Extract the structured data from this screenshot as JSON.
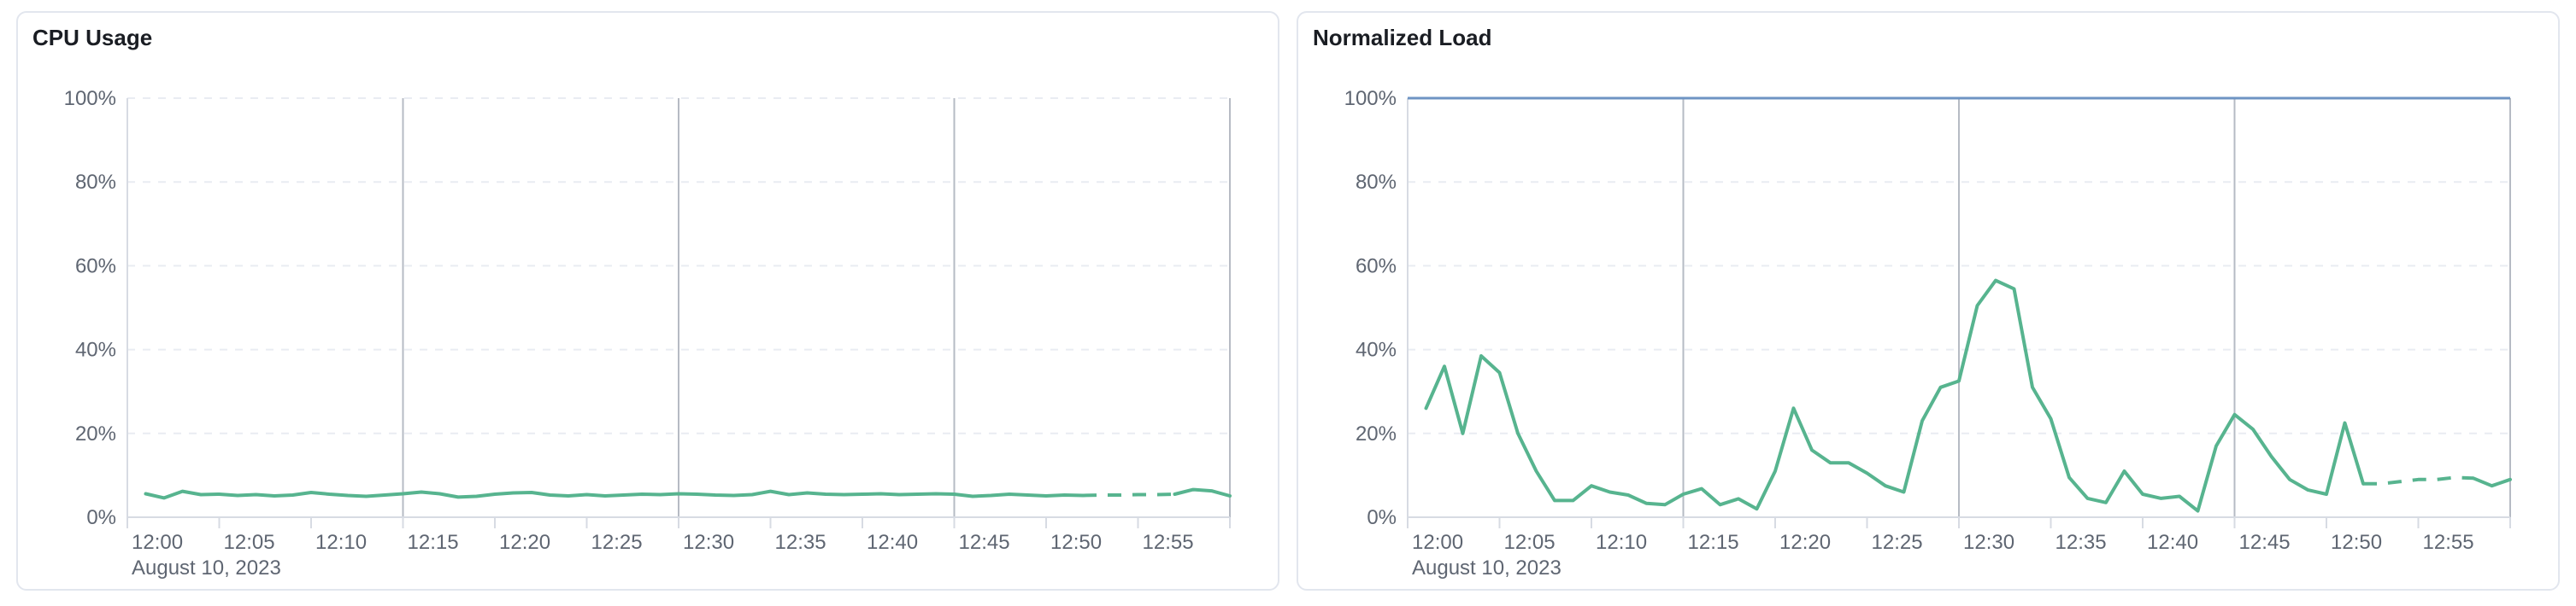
{
  "colors": {
    "series_green": "#57b48f",
    "limit_blue": "#6e94c3",
    "grid_dashed": "#e9ecf2",
    "grid_vertical": "#b6bbc4",
    "axis_line": "#d7dbe3",
    "axis_text": "#5f6672",
    "title_text": "#1a1d23",
    "card_border": "#e2e6ee",
    "card_bg": "#ffffff"
  },
  "chart_data": [
    {
      "type": "line",
      "title": "CPU Usage",
      "legend": "none",
      "grid": "dashed-horizontal, solid-vertical-15min",
      "x_axis": {
        "unit": "minutes after 12:00 on August 10, 2023",
        "domain_minutes": [
          0,
          60
        ],
        "tick_minutes": [
          0,
          5,
          10,
          15,
          20,
          25,
          30,
          35,
          40,
          45,
          50,
          55
        ],
        "tick_labels": [
          "12:00",
          "12:05",
          "12:10",
          "12:15",
          "12:20",
          "12:25",
          "12:30",
          "12:35",
          "12:40",
          "12:45",
          "12:50",
          "12:55"
        ],
        "date_label": "August 10, 2023",
        "vertical_gridline_minutes": [
          15,
          30,
          45,
          60
        ],
        "edge_tick_minutes": [
          0,
          60
        ]
      },
      "y_axis": {
        "range_percent": [
          0,
          100
        ],
        "tick_values": [
          0,
          20,
          40,
          60,
          80,
          100
        ],
        "tick_labels": [
          "0%",
          "20%",
          "40%",
          "60%",
          "80%",
          "100%"
        ],
        "dashed_gridline_values": [
          20,
          40,
          60,
          80,
          100
        ]
      },
      "series": [
        {
          "name": "cpu-usage",
          "kind": "data-line",
          "color": "#57b48f",
          "stroke_width": 4,
          "start_minute": 1,
          "minute_step": 1,
          "values_percent": [
            5.6,
            4.6,
            6.2,
            5.4,
            5.5,
            5.2,
            5.4,
            5.1,
            5.3,
            5.9,
            5.5,
            5.2,
            5.0,
            5.3,
            5.6,
            6.0,
            5.6,
            4.8,
            5.0,
            5.5,
            5.8,
            5.9,
            5.3,
            5.1,
            5.4,
            5.1,
            5.3,
            5.5,
            5.4,
            5.6,
            5.5,
            5.3,
            5.2,
            5.4,
            6.2,
            5.4,
            5.8,
            5.5,
            5.4,
            5.5,
            5.6,
            5.4,
            5.5,
            5.6,
            5.5,
            5.0,
            5.2,
            5.5,
            5.3,
            5.1,
            5.3,
            5.2,
            5.3,
            5.3,
            5.4,
            5.4,
            5.5,
            6.6,
            6.3,
            5.1
          ],
          "dashed_minute_ranges": [
            [
              52,
              57
            ]
          ]
        }
      ]
    },
    {
      "type": "line",
      "title": "Normalized Load",
      "legend": "none",
      "grid": "dashed-horizontal, solid-vertical-15min",
      "x_axis": {
        "unit": "minutes after 12:00 on August 10, 2023",
        "domain_minutes": [
          0,
          60
        ],
        "tick_minutes": [
          0,
          5,
          10,
          15,
          20,
          25,
          30,
          35,
          40,
          45,
          50,
          55
        ],
        "tick_labels": [
          "12:00",
          "12:05",
          "12:10",
          "12:15",
          "12:20",
          "12:25",
          "12:30",
          "12:35",
          "12:40",
          "12:45",
          "12:50",
          "12:55"
        ],
        "date_label": "August 10, 2023",
        "vertical_gridline_minutes": [
          15,
          30,
          45,
          60
        ],
        "edge_tick_minutes": [
          0,
          60
        ]
      },
      "y_axis": {
        "range_percent": [
          0,
          100
        ],
        "tick_values": [
          0,
          20,
          40,
          60,
          80,
          100
        ],
        "tick_labels": [
          "0%",
          "20%",
          "40%",
          "60%",
          "80%",
          "100%"
        ],
        "dashed_gridline_values": [
          20,
          40,
          60,
          80,
          100
        ]
      },
      "series": [
        {
          "name": "limit-100-percent",
          "kind": "horizontal-line",
          "color": "#6e94c3",
          "stroke_width": 3,
          "value_percent": 100
        },
        {
          "name": "normalized-load",
          "kind": "data-line",
          "color": "#57b48f",
          "stroke_width": 4,
          "start_minute": 1,
          "minute_step": 1,
          "values_percent": [
            26,
            36,
            20,
            38.5,
            34.5,
            20,
            11,
            4,
            4,
            7.5,
            6,
            5.3,
            3.3,
            3,
            5.5,
            6.8,
            3,
            4.4,
            2,
            11,
            26,
            16,
            13,
            13,
            10.5,
            7.5,
            6,
            23,
            31,
            32.5,
            50.5,
            56.5,
            54.5,
            31,
            23.5,
            9.5,
            4.5,
            3.5,
            11,
            5.5,
            4.5,
            5,
            1.5,
            17,
            24.5,
            21,
            14.5,
            9,
            6.5,
            5.5,
            22.5,
            8,
            8,
            8.5,
            9,
            9,
            9.5,
            9.3,
            7.5,
            9
          ],
          "dashed_minute_ranges": [
            [
              52,
              58
            ]
          ]
        }
      ]
    }
  ]
}
